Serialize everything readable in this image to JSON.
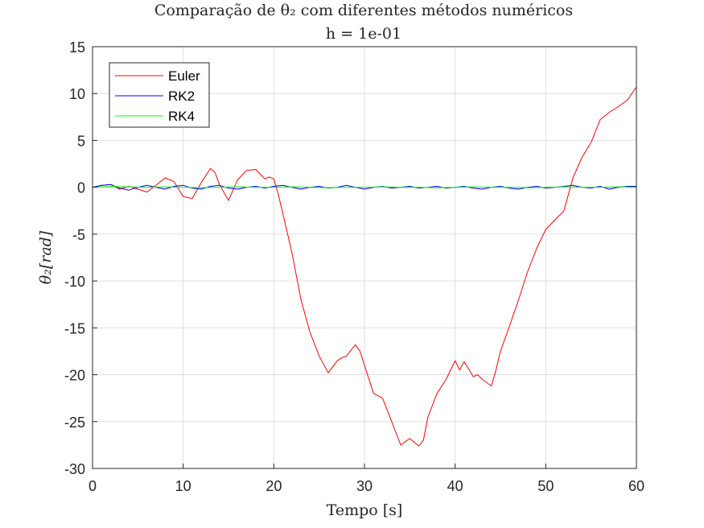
{
  "chart_data": {
    "type": "line",
    "title": "Comparação de θ₂ com diferentes métodos numéricos",
    "subtitle": "h = 1e-01",
    "xlabel": "Tempo [s]",
    "ylabel": "θ₂[rad]",
    "xlim": [
      0,
      60
    ],
    "ylim": [
      -30,
      15
    ],
    "xticks": [
      0,
      10,
      20,
      30,
      40,
      50,
      60
    ],
    "yticks": [
      -30,
      -25,
      -20,
      -15,
      -10,
      -5,
      0,
      5,
      10,
      15
    ],
    "xtick_labels": [
      "0",
      "10",
      "20",
      "30",
      "40",
      "50",
      "60"
    ],
    "ytick_labels": [
      "-30",
      "-25",
      "-20",
      "-15",
      "-10",
      "-5",
      "0",
      "5",
      "10",
      "15"
    ],
    "grid": true,
    "legend_position": "top-left",
    "series": [
      {
        "name": "Euler",
        "color": "#ff0000",
        "x": [
          0,
          1,
          2,
          3,
          4,
          5,
          6,
          7,
          8,
          9,
          10,
          11,
          12,
          13,
          13.5,
          14,
          15,
          15.5,
          16,
          17,
          18,
          19,
          19.5,
          20,
          20.5,
          21,
          22,
          23,
          24,
          25,
          26,
          27,
          27.5,
          28,
          29,
          29.5,
          30,
          31,
          32,
          33,
          34,
          35,
          36,
          36.5,
          37,
          38,
          39,
          40,
          40.5,
          41,
          42,
          42.5,
          43,
          44,
          44.5,
          45,
          46,
          47,
          48,
          49,
          50,
          51,
          52,
          53,
          54,
          55,
          56,
          57,
          58,
          59,
          60
        ],
        "values": [
          0,
          0.2,
          0.3,
          -0.2,
          0.1,
          -0.2,
          -0.5,
          0.2,
          1.0,
          0.6,
          -1.0,
          -1.2,
          0.5,
          2.0,
          1.6,
          0.3,
          -1.4,
          -0.3,
          0.8,
          1.8,
          1.9,
          0.9,
          1.1,
          0.9,
          -0.8,
          -2.8,
          -7.0,
          -12.0,
          -15.5,
          -18.0,
          -19.8,
          -18.5,
          -18.2,
          -18.0,
          -16.8,
          -17.5,
          -19.0,
          -22.0,
          -22.5,
          -25.0,
          -27.5,
          -26.8,
          -27.6,
          -27.0,
          -24.5,
          -22.0,
          -20.5,
          -18.5,
          -19.5,
          -18.6,
          -20.2,
          -20.0,
          -20.5,
          -21.2,
          -19.5,
          -17.5,
          -14.8,
          -12.0,
          -9.0,
          -6.5,
          -4.5,
          -3.5,
          -2.5,
          1.0,
          3.2,
          4.8,
          7.2,
          8.0,
          8.6,
          9.3,
          10.7
        ]
      },
      {
        "name": "RK2",
        "color": "#0000ff",
        "x": [
          0,
          1,
          2,
          3,
          4,
          5,
          6,
          7,
          8,
          9,
          10,
          11,
          12,
          13,
          14,
          15,
          16,
          17,
          18,
          19,
          20,
          21,
          22,
          23,
          24,
          25,
          26,
          27,
          28,
          29,
          30,
          31,
          32,
          33,
          34,
          35,
          36,
          37,
          38,
          39,
          40,
          41,
          42,
          43,
          44,
          45,
          46,
          47,
          48,
          49,
          50,
          51,
          52,
          53,
          54,
          55,
          56,
          57,
          58,
          59,
          60
        ],
        "values": [
          0,
          0.2,
          0.3,
          -0.1,
          -0.3,
          0,
          0.2,
          0,
          -0.2,
          0.1,
          0.2,
          -0.1,
          -0.2,
          0.1,
          0.2,
          -0.1,
          -0.2,
          0,
          0.1,
          -0.1,
          0.1,
          0.2,
          0,
          -0.2,
          0,
          0.1,
          -0.1,
          0,
          0.2,
          0,
          -0.2,
          0,
          0.1,
          -0.1,
          0,
          0.1,
          -0.1,
          0,
          0.1,
          -0.1,
          0,
          0.1,
          -0.1,
          -0.2,
          0,
          0.1,
          -0.1,
          -0.2,
          0,
          0.1,
          -0.1,
          0,
          0.1,
          0.2,
          0,
          -0.1,
          0.1,
          -0.2,
          0,
          0.1,
          0.1
        ]
      },
      {
        "name": "RK4",
        "color": "#00ff00",
        "x": [
          0,
          2,
          4,
          6,
          8,
          10,
          12,
          14,
          16,
          18,
          20,
          22,
          24,
          26,
          28,
          30,
          32,
          34,
          36,
          38,
          40,
          42,
          44,
          46,
          48,
          50,
          52,
          54,
          56,
          58,
          60
        ],
        "values": [
          0,
          0.1,
          0.05,
          0,
          0.05,
          0,
          -0.05,
          0,
          0.05,
          0,
          0,
          0.05,
          0,
          -0.05,
          0,
          0,
          0.05,
          0,
          0,
          -0.05,
          0,
          0.05,
          0,
          0,
          -0.05,
          0,
          0.05,
          0,
          0,
          0.05,
          0
        ]
      }
    ]
  }
}
